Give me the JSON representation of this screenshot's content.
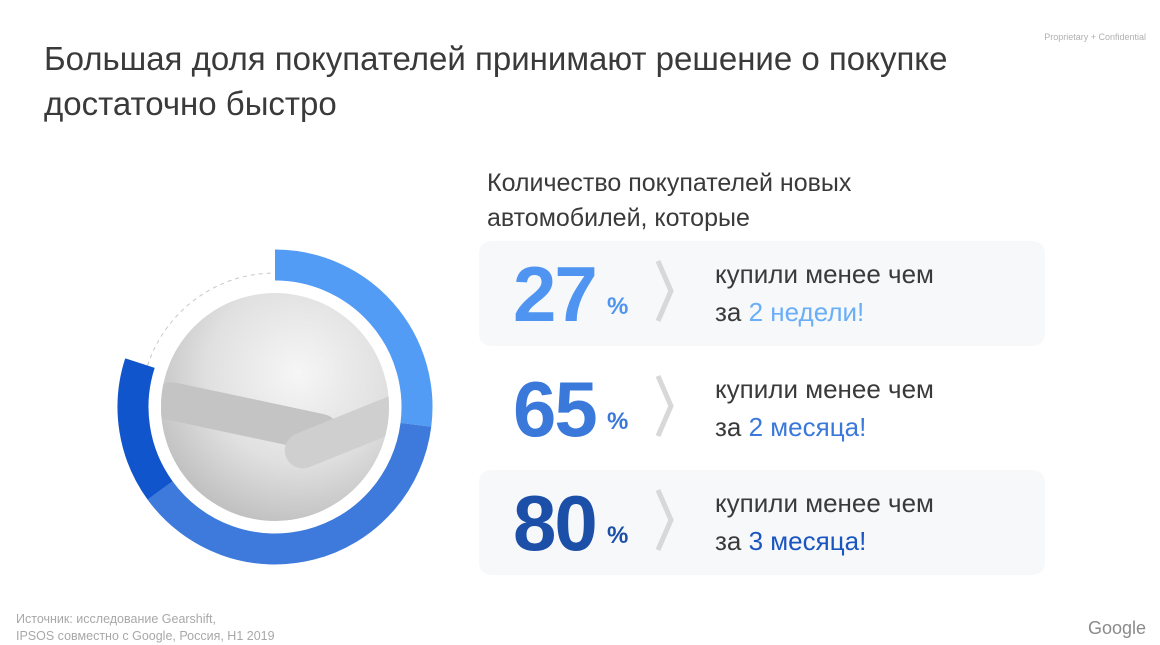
{
  "confidential": "Proprietary + Confidential",
  "title": "Большая доля покупателей принимают решение о покупке достаточно быстро",
  "subtitle": "Количество покупателей новых автомобилей, которые",
  "chart_data": {
    "type": "pie",
    "style": "donut, cumulative segments starting at top, clockwise",
    "values": [
      27,
      65,
      80
    ],
    "colors": [
      "#539CF5",
      "#3D7ADB",
      "#1155CC"
    ],
    "remainder_style": "dashed grey arc"
  },
  "stats": [
    {
      "value": "27",
      "unit": "%",
      "line1": "купили менее чем",
      "prefix": "за",
      "highlight": "2 недели!",
      "color": "#4F94F0",
      "highlight_color": "#6AAEF8"
    },
    {
      "value": "65",
      "unit": "%",
      "line1": "купили менее чем",
      "prefix": "за",
      "highlight": "2 месяца!",
      "color": "#3A78DA",
      "highlight_color": "#3A78DA"
    },
    {
      "value": "80",
      "unit": "%",
      "line1": "купили менее чем",
      "prefix": "за",
      "highlight": "3 месяца!",
      "color": "#1B4FA8",
      "highlight_color": "#1B55C0"
    }
  ],
  "source": [
    "Источник: исследование Gearshift,",
    "IPSOS совместно с Google, Россия, H1 2019"
  ],
  "logo": "Google"
}
